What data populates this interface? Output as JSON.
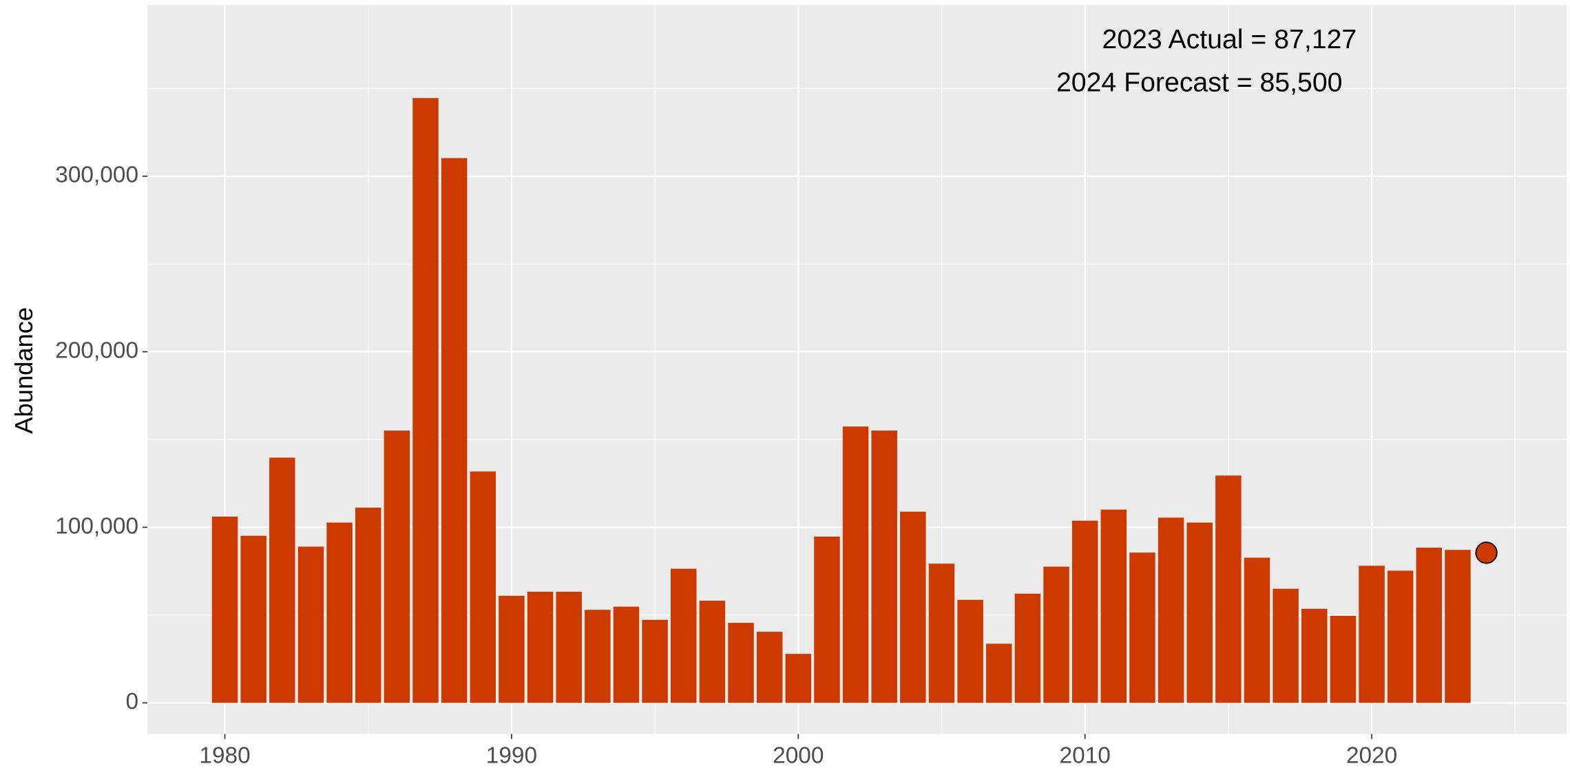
{
  "chart_data": {
    "type": "bar",
    "ylabel": "Abundance",
    "annotations": [
      "2023 Actual = 87,127",
      "2024 Forecast = 85,500"
    ],
    "x": [
      1980,
      1981,
      1982,
      1983,
      1984,
      1985,
      1986,
      1987,
      1988,
      1989,
      1990,
      1991,
      1992,
      1993,
      1994,
      1995,
      1996,
      1997,
      1998,
      1999,
      2000,
      2001,
      2002,
      2003,
      2004,
      2005,
      2006,
      2007,
      2008,
      2009,
      2010,
      2011,
      2012,
      2013,
      2014,
      2015,
      2016,
      2017,
      2018,
      2019,
      2020,
      2021,
      2022,
      2023
    ],
    "values": [
      106100,
      95200,
      139700,
      89000,
      102700,
      111200,
      155100,
      344500,
      310300,
      131800,
      61000,
      63300,
      63300,
      53000,
      54800,
      47300,
      76400,
      58200,
      45600,
      40500,
      27900,
      94700,
      157400,
      155100,
      108900,
      79300,
      58700,
      33700,
      62200,
      77600,
      103800,
      110100,
      85600,
      105500,
      102700,
      129500,
      82700,
      65000,
      53600,
      49600,
      78100,
      75300,
      88400,
      87127
    ],
    "color": "#cc3a00",
    "forecast": {
      "x": 2024,
      "value": 85500,
      "color": "#cc3a00"
    },
    "xlim": [
      1977.3,
      2026.8
    ],
    "ylim": [
      -17700,
      397500
    ],
    "xticks": [
      1980,
      1990,
      2000,
      2010,
      2020
    ],
    "yticks": [
      0,
      {
        "value": 100000,
        "label": "100,000"
      },
      {
        "value": 200000,
        "label": "200,000"
      },
      {
        "value": 300000,
        "label": "300,000"
      }
    ],
    "grid": true
  }
}
